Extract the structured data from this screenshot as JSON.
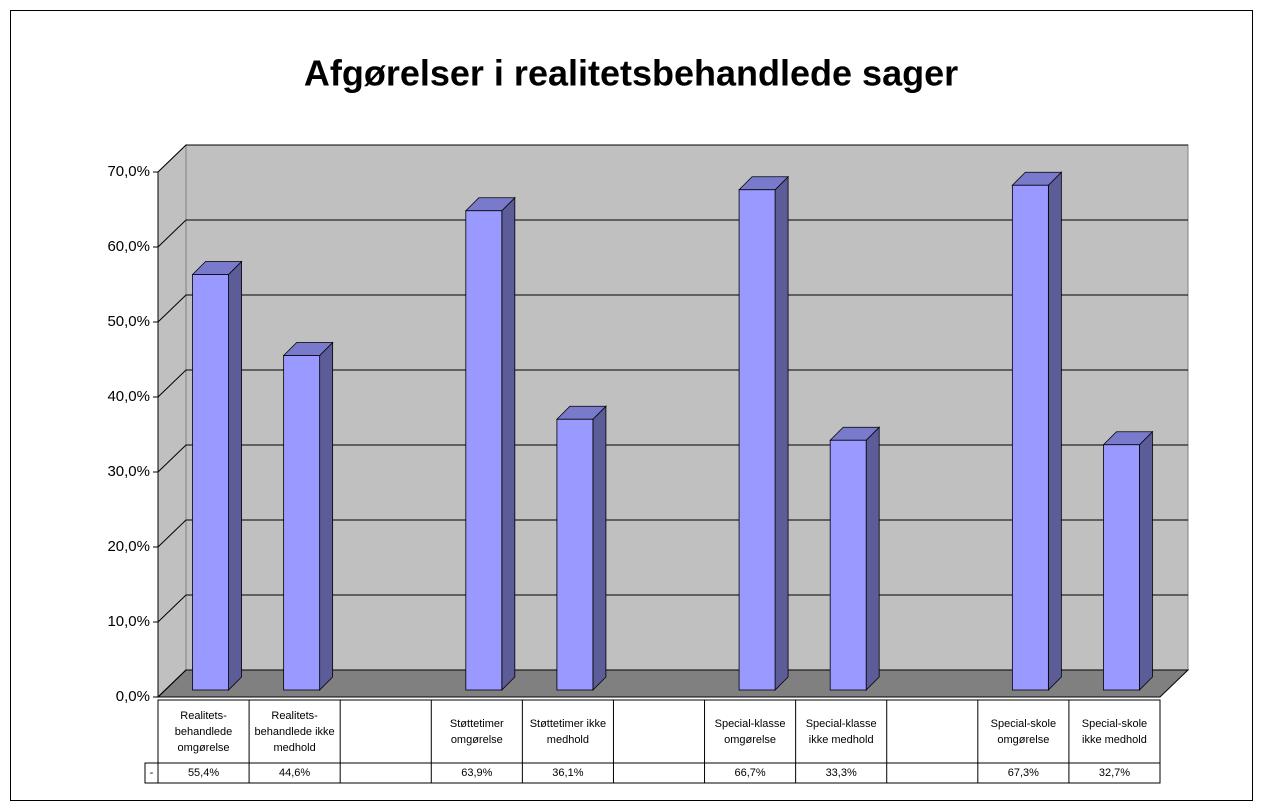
{
  "chart_data": {
    "type": "bar3d",
    "title": "Afgørelser i realitetsbehandlede sager",
    "categories": [
      "Realitets-behandlede omgørelse",
      "Realitets-behandlede ikke medhold",
      null,
      "Støttetimer omgørelse",
      "Støttetimer ikke medhold",
      null,
      "Special-klasse omgørelse",
      "Special-klasse ikke medhold",
      null,
      "Special-skole omgørelse",
      "Special-skole ikke medhold"
    ],
    "series": [
      {
        "name": "-",
        "color": "#9999ff",
        "values": [
          55.4,
          44.6,
          null,
          63.9,
          36.1,
          null,
          66.7,
          33.3,
          null,
          67.3,
          32.7
        ],
        "value_labels": [
          "55,4%",
          "44,6%",
          null,
          "63,9%",
          "36,1%",
          null,
          "66,7%",
          "33,3%",
          null,
          "67,3%",
          "32,7%"
        ]
      }
    ],
    "ylim": [
      0,
      70
    ],
    "yticks": [
      {
        "value": 0,
        "label": "0,0%"
      },
      {
        "value": 10,
        "label": "10,0%"
      },
      {
        "value": 20,
        "label": "20,0%"
      },
      {
        "value": 30,
        "label": "30,0%"
      },
      {
        "value": 40,
        "label": "40,0%"
      },
      {
        "value": 50,
        "label": "50,0%"
      },
      {
        "value": 60,
        "label": "60,0%"
      },
      {
        "value": 70,
        "label": "70,0%"
      }
    ],
    "grid": true
  }
}
